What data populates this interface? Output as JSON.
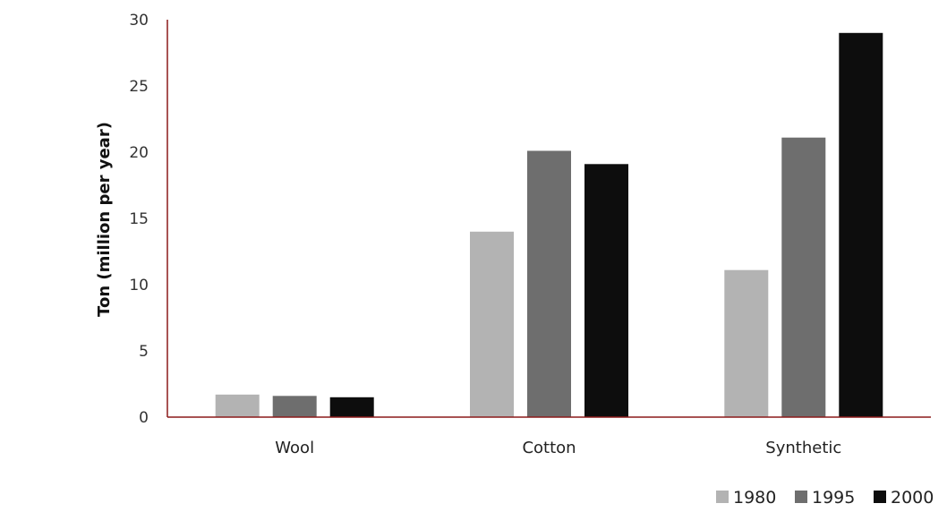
{
  "chart_data": {
    "type": "bar",
    "title": "",
    "xlabel": "",
    "ylabel": "Ton (million per year)",
    "categories": [
      "Wool",
      "Cotton",
      "Synthetic"
    ],
    "series": [
      {
        "name": "1980",
        "color": "#b3b3b3",
        "values": [
          1.7,
          14.0,
          11.1
        ]
      },
      {
        "name": "1995",
        "color": "#6e6e6e",
        "values": [
          1.6,
          20.1,
          21.1
        ]
      },
      {
        "name": "2000",
        "color": "#0d0d0d",
        "values": [
          1.5,
          19.1,
          29.0
        ]
      }
    ],
    "ylim": [
      0,
      30
    ],
    "yticks": [
      0,
      5,
      10,
      15,
      20,
      25,
      30
    ],
    "grid": false,
    "legend_position": "bottom-right",
    "axis_color": "#8b1a1a"
  }
}
